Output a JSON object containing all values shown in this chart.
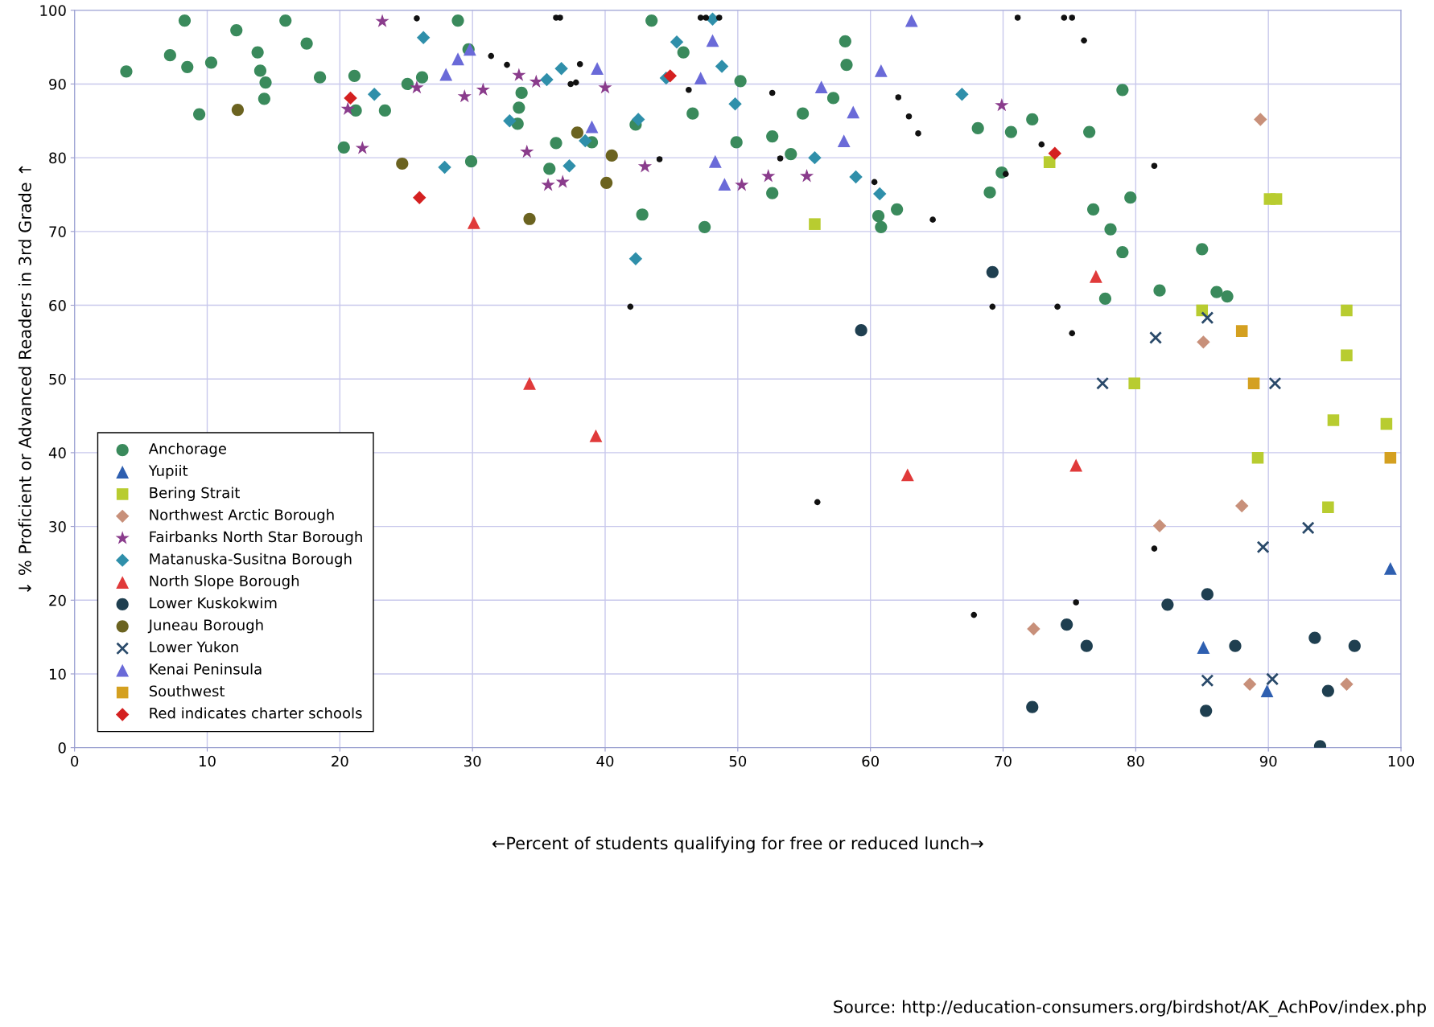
{
  "chart_data": {
    "type": "scatter",
    "xlabel": "←Percent of students qualifying for free or reduced lunch→",
    "ylabel": "↓ % Proficient or Advanced Readers in 3rd Grade ↑",
    "xlim": [
      0,
      100
    ],
    "ylim": [
      0,
      100
    ],
    "xticks": [
      0,
      10,
      20,
      30,
      40,
      50,
      60,
      70,
      80,
      90,
      100
    ],
    "yticks": [
      0,
      10,
      20,
      30,
      40,
      50,
      60,
      70,
      80,
      90,
      100
    ],
    "grid": true,
    "legend": "bottom left",
    "annotations": [
      "Source: http://education-consumers.org/birdshot/AK_AchPov/index.php"
    ],
    "series": [
      {
        "name": "Anchorage",
        "color": "#3a8a5c",
        "marker": "circle",
        "x": [
          3.9,
          7.2,
          8.3,
          8.5,
          9.4,
          10.3,
          12.2,
          13.8,
          14.0,
          14.4,
          14.3,
          15.9,
          17.5,
          18.5,
          20.3,
          21.1,
          21.2,
          23.4,
          25.1,
          26.2,
          28.9,
          29.7,
          29.9,
          33.7,
          33.5,
          33.4,
          35.8,
          36.3,
          39.0,
          42.3,
          42.8,
          43.5,
          45.9,
          46.6,
          47.5,
          50.2,
          49.9,
          52.6,
          52.6,
          54.0,
          54.9,
          57.2,
          58.1,
          58.2,
          60.6,
          60.8,
          62.0,
          68.1,
          69.0,
          69.9,
          70.6,
          72.2,
          76.5,
          76.8,
          78.1,
          79.0,
          79.0,
          79.6,
          77.7,
          81.8,
          85.0,
          86.1,
          86.9
        ],
        "values": [
          91.7,
          93.9,
          98.6,
          92.3,
          85.9,
          92.9,
          97.3,
          94.3,
          91.8,
          90.2,
          88.0,
          98.6,
          95.5,
          90.9,
          81.4,
          91.1,
          86.4,
          86.4,
          90.0,
          90.9,
          98.6,
          94.7,
          79.5,
          88.8,
          86.8,
          84.6,
          78.5,
          82.0,
          82.1,
          84.5,
          72.3,
          98.6,
          94.3,
          86.0,
          70.6,
          90.4,
          82.1,
          82.9,
          75.2,
          80.5,
          86.0,
          88.1,
          95.8,
          92.6,
          72.1,
          70.6,
          73.0,
          84.0,
          75.3,
          78.0,
          83.5,
          85.2,
          83.5,
          73.0,
          70.3,
          67.2,
          89.2,
          74.6,
          60.9,
          62.0,
          67.6,
          61.8,
          61.2
        ]
      },
      {
        "name": "Yupiit",
        "color": "#2e5fb0",
        "marker": "triangle",
        "x": [
          99.2,
          85.1,
          89.9
        ],
        "values": [
          24.3,
          13.6,
          7.7
        ]
      },
      {
        "name": "Bering Strait",
        "color": "#b8cc30",
        "marker": "square",
        "x": [
          55.8,
          73.5,
          79.9,
          85.0,
          90.1,
          90.6,
          89.2,
          95.9,
          95.9,
          94.9,
          94.5,
          98.9
        ],
        "values": [
          71.0,
          79.4,
          49.4,
          59.3,
          74.4,
          74.4,
          39.3,
          59.3,
          53.2,
          44.4,
          32.6,
          43.9
        ]
      },
      {
        "name": "Northwest Arctic Borough",
        "color": "#c8907a",
        "marker": "diamond",
        "x": [
          89.4,
          85.1,
          88.0,
          81.8,
          72.3,
          88.6,
          95.9
        ],
        "values": [
          85.2,
          55.0,
          32.8,
          30.1,
          16.1,
          8.6,
          8.6
        ]
      },
      {
        "name": "Fairbanks North Star Borough",
        "color": "#8a3c8c",
        "marker": "star",
        "x": [
          23.2,
          20.6,
          21.7,
          25.8,
          29.4,
          30.8,
          33.5,
          34.1,
          34.8,
          35.7,
          36.8,
          40.0,
          43.0,
          50.3,
          52.3,
          55.2,
          69.9
        ],
        "values": [
          98.5,
          86.6,
          81.3,
          89.5,
          88.3,
          89.2,
          91.2,
          80.8,
          90.3,
          76.3,
          76.7,
          89.5,
          78.8,
          76.3,
          77.5,
          77.5,
          87.1
        ]
      },
      {
        "name": "Matanuska-Susitna Borough",
        "color": "#2f8faa",
        "marker": "diamond",
        "x": [
          26.3,
          22.6,
          27.9,
          32.8,
          35.6,
          36.7,
          37.3,
          38.5,
          42.5,
          42.3,
          45.4,
          44.6,
          48.1,
          48.8,
          49.8,
          55.8,
          58.9,
          60.7,
          66.9
        ],
        "values": [
          96.3,
          88.6,
          78.7,
          85.0,
          90.6,
          92.1,
          78.9,
          82.3,
          85.2,
          66.3,
          95.7,
          90.8,
          98.8,
          92.4,
          87.3,
          80.0,
          77.4,
          75.1,
          88.6
        ]
      },
      {
        "name": "North Slope Borough",
        "color": "#e03a3a",
        "marker": "triangle",
        "x": [
          30.1,
          34.3,
          39.3,
          62.8,
          75.5,
          77.0
        ],
        "values": [
          71.2,
          49.4,
          42.3,
          37.0,
          38.3,
          63.9
        ]
      },
      {
        "name": "Lower Kuskokwim",
        "color": "#1f3f50",
        "marker": "circle",
        "x": [
          69.2,
          59.3,
          74.8,
          76.3,
          72.2,
          82.4,
          85.4,
          87.5,
          85.3,
          93.5,
          96.5,
          94.5,
          93.9
        ],
        "values": [
          64.5,
          56.6,
          16.7,
          13.8,
          5.5,
          19.4,
          20.8,
          13.8,
          5.0,
          14.9,
          13.8,
          7.7,
          0.2
        ]
      },
      {
        "name": "Juneau Borough",
        "color": "#6b6320",
        "marker": "circle",
        "x": [
          12.3,
          24.7,
          34.3,
          37.9,
          40.5,
          40.1
        ],
        "values": [
          86.5,
          79.2,
          71.7,
          83.4,
          80.3,
          76.6
        ]
      },
      {
        "name": "Lower Yukon",
        "color": "#2a4a6a",
        "marker": "cross",
        "x": [
          85.4,
          81.5,
          77.5,
          90.5,
          93.0,
          89.6,
          85.4,
          90.3
        ],
        "values": [
          58.3,
          55.6,
          49.4,
          49.4,
          29.8,
          27.2,
          9.1,
          9.3
        ]
      },
      {
        "name": "Kenai Peninsula",
        "color": "#6a6ad8",
        "marker": "triangle",
        "x": [
          28.0,
          28.9,
          29.8,
          39.4,
          39.0,
          48.1,
          47.2,
          48.3,
          49.0,
          56.3,
          58.7,
          58.0,
          60.8,
          63.1
        ],
        "values": [
          91.3,
          93.4,
          94.7,
          92.1,
          84.2,
          95.9,
          90.8,
          79.5,
          76.4,
          89.6,
          86.2,
          82.3,
          91.8,
          98.6
        ]
      },
      {
        "name": "Southwest",
        "color": "#d4a020",
        "marker": "square",
        "x": [
          88.0,
          88.9,
          99.2
        ],
        "values": [
          56.5,
          49.4,
          39.3
        ]
      },
      {
        "name": "Red indicates charter schools",
        "color": "#d42020",
        "marker": "diamond",
        "x": [
          20.8,
          26.0,
          44.9,
          73.9
        ],
        "values": [
          88.1,
          74.6,
          91.1,
          80.6
        ]
      },
      {
        "color": "#111111",
        "marker": "circle",
        "x": [
          25.8,
          36.3,
          36.6,
          47.2,
          47.6,
          48.6,
          71.1,
          74.6,
          75.2,
          76.1,
          31.4,
          32.6,
          38.1,
          37.4,
          37.8,
          46.3,
          52.6,
          62.1,
          62.9,
          63.6,
          72.9,
          53.2,
          44.1,
          60.3,
          70.2,
          81.4,
          64.7,
          41.9,
          69.2,
          74.1,
          75.2,
          56.0,
          81.4,
          75.5,
          67.8
        ],
        "values": [
          98.9,
          99.0,
          99.0,
          99.0,
          99.0,
          99.0,
          99.0,
          99.0,
          99.0,
          95.9,
          93.8,
          92.6,
          92.7,
          90.0,
          90.2,
          89.2,
          88.8,
          88.2,
          85.6,
          83.3,
          81.8,
          79.9,
          79.8,
          76.7,
          77.8,
          78.9,
          71.6,
          59.8,
          59.8,
          59.8,
          56.2,
          33.3,
          27.0,
          19.7,
          18.0
        ]
      }
    ]
  }
}
